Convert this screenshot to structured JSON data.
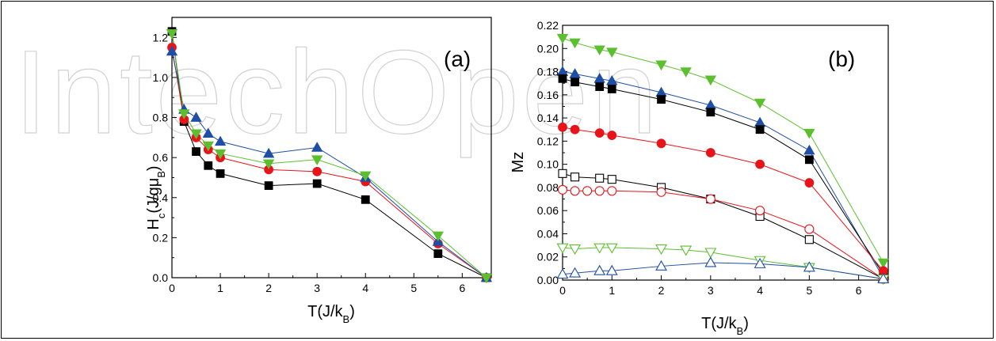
{
  "watermark": "IntechOpen",
  "chart_data": [
    {
      "type": "line",
      "panel_label": "(a)",
      "ylabel_main": "H",
      "ylabel_sub_c": "c",
      "ylabel_mid": "(J/gμ",
      "ylabel_sub_b": "B",
      "ylabel_end": ")",
      "xlabel_main": "T(J/k",
      "xlabel_sub": "B",
      "xlabel_end": ")",
      "xlim": [
        0,
        6.6
      ],
      "ylim": [
        0,
        1.3
      ],
      "xticks": [
        "0",
        "1",
        "2",
        "3",
        "4",
        "5",
        "6"
      ],
      "yticks": [
        "0.0",
        "0.2",
        "0.4",
        "0.6",
        "0.8",
        "1.0",
        "1.2"
      ],
      "x": [
        0,
        0.25,
        0.5,
        0.75,
        1,
        2,
        3,
        4,
        5.5,
        6.5
      ],
      "series": [
        {
          "color": "#000000",
          "marker": "square",
          "filled": true,
          "values": [
            1.23,
            0.78,
            0.63,
            0.56,
            0.52,
            0.46,
            0.47,
            0.39,
            0.12,
            0.0
          ]
        },
        {
          "color": "#e8141a",
          "marker": "circle",
          "filled": true,
          "values": [
            1.15,
            0.79,
            0.7,
            0.64,
            0.6,
            0.54,
            0.53,
            0.48,
            0.17,
            0.0
          ]
        },
        {
          "color": "#1f4ea6",
          "marker": "triangle-up",
          "filled": true,
          "values": [
            1.13,
            0.84,
            0.8,
            0.72,
            0.68,
            0.62,
            0.65,
            0.5,
            0.18,
            0.0
          ]
        },
        {
          "color": "#5bbf2e",
          "marker": "triangle-down",
          "filled": true,
          "values": [
            1.22,
            0.82,
            0.72,
            0.66,
            0.62,
            0.57,
            0.59,
            0.51,
            0.21,
            0.0
          ]
        }
      ]
    },
    {
      "type": "line",
      "panel_label": "(b)",
      "ylabel_main": "Mz",
      "xlabel_main": "T(J/k",
      "xlabel_sub": "B",
      "xlabel_end": ")",
      "xlim": [
        0,
        6.6
      ],
      "ylim": [
        0,
        0.22
      ],
      "xticks": [
        "0",
        "1",
        "2",
        "3",
        "4",
        "5",
        "6"
      ],
      "yticks": [
        "0.00",
        "0.02",
        "0.04",
        "0.06",
        "0.08",
        "0.10",
        "0.12",
        "0.14",
        "0.16",
        "0.18",
        "0.20",
        "0.22"
      ],
      "series": [
        {
          "color": "#5bbf2e",
          "marker": "triangle-down",
          "filled": true,
          "x": [
            0,
            0.25,
            0.75,
            1,
            2,
            2.5,
            3,
            4,
            5,
            6.5
          ],
          "values": [
            0.209,
            0.205,
            0.199,
            0.197,
            0.186,
            0.18,
            0.173,
            0.153,
            0.127,
            0.015
          ]
        },
        {
          "color": "#1f4ea6",
          "marker": "triangle-up",
          "filled": true,
          "x": [
            0,
            0.25,
            0.75,
            1,
            2,
            3,
            4,
            5,
            6.5
          ],
          "values": [
            0.18,
            0.178,
            0.174,
            0.172,
            0.162,
            0.151,
            0.136,
            0.112,
            0.002
          ]
        },
        {
          "color": "#000000",
          "marker": "square",
          "filled": true,
          "x": [
            0,
            0.25,
            0.75,
            1,
            2,
            3,
            4,
            5,
            6.5
          ],
          "values": [
            0.174,
            0.171,
            0.167,
            0.165,
            0.156,
            0.145,
            0.13,
            0.104,
            0.005
          ]
        },
        {
          "color": "#e8141a",
          "marker": "circle",
          "filled": true,
          "x": [
            0,
            0.25,
            0.75,
            1,
            2,
            3,
            4,
            5,
            6.5
          ],
          "values": [
            0.132,
            0.13,
            0.127,
            0.125,
            0.118,
            0.11,
            0.1,
            0.084,
            0.008
          ]
        },
        {
          "color": "#000000",
          "marker": "square",
          "filled": false,
          "x": [
            0,
            0.25,
            0.75,
            1,
            2,
            3,
            4,
            5,
            6.5
          ],
          "values": [
            0.092,
            0.089,
            0.088,
            0.087,
            0.08,
            0.07,
            0.055,
            0.035,
            0.001
          ]
        },
        {
          "color": "#e8141a",
          "marker": "circle",
          "filled": false,
          "x": [
            0,
            0.25,
            0.5,
            0.75,
            1,
            2,
            3,
            4,
            5,
            6.5
          ],
          "values": [
            0.078,
            0.077,
            0.077,
            0.077,
            0.077,
            0.076,
            0.07,
            0.06,
            0.044,
            0.001
          ]
        },
        {
          "color": "#5bbf2e",
          "marker": "triangle-down",
          "filled": false,
          "x": [
            0,
            0.25,
            0.75,
            1,
            2,
            2.5,
            3,
            4,
            5,
            6.5
          ],
          "values": [
            0.028,
            0.027,
            0.028,
            0.028,
            0.027,
            0.026,
            0.024,
            0.017,
            0.011,
            0.001
          ]
        },
        {
          "color": "#1f4ea6",
          "marker": "triangle-up",
          "filled": false,
          "x": [
            0,
            0.25,
            0.75,
            1,
            2,
            3,
            4,
            5,
            6.5
          ],
          "values": [
            0.005,
            0.006,
            0.008,
            0.008,
            0.012,
            0.015,
            0.014,
            0.011,
            0.001
          ]
        }
      ]
    }
  ]
}
